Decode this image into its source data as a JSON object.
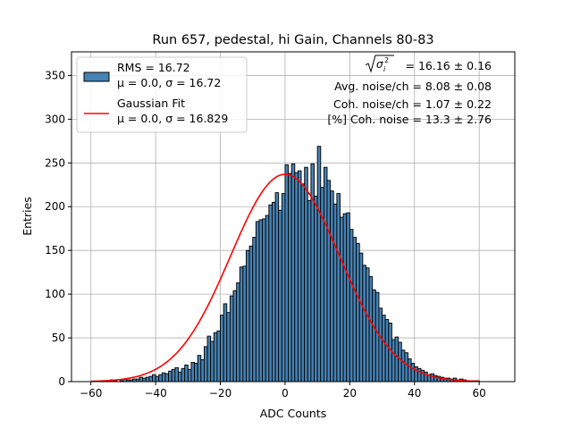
{
  "chart_data": {
    "type": "bar",
    "title": "Run 657, pedestal, hi Gain, Channels 80-83",
    "xlabel": "ADC Counts",
    "ylabel": "Entries",
    "xlim": [
      -66,
      71
    ],
    "ylim": [
      0,
      377
    ],
    "xticks": [
      -60,
      -40,
      -20,
      0,
      20,
      40,
      60
    ],
    "yticks": [
      0,
      50,
      100,
      150,
      200,
      250,
      300,
      350
    ],
    "grid": true,
    "legend_position": "top-left",
    "bin_width": 1,
    "x_start": -60,
    "histogram_counts": [
      0,
      0,
      0,
      0,
      1,
      1,
      2,
      1,
      0,
      1,
      3,
      2,
      2,
      3,
      3,
      5,
      4,
      5,
      6,
      8,
      6,
      8,
      10,
      9,
      12,
      14,
      16,
      11,
      15,
      19,
      14,
      22,
      21,
      30,
      25,
      40,
      52,
      46,
      56,
      58,
      76,
      89,
      79,
      98,
      104,
      113,
      131,
      132,
      150,
      155,
      165,
      183,
      185,
      186,
      190,
      202,
      205,
      216,
      196,
      215,
      248,
      238,
      249,
      239,
      241,
      226,
      245,
      207,
      249,
      212,
      269,
      222,
      245,
      230,
      218,
      203,
      215,
      188,
      192,
      193,
      174,
      165,
      158,
      147,
      133,
      130,
      120,
      105,
      102,
      84,
      76,
      71,
      67,
      48,
      51,
      45,
      36,
      33,
      26,
      21,
      17,
      15,
      13,
      11,
      8,
      9,
      7,
      6,
      5,
      4,
      4,
      3,
      4,
      2,
      3,
      2,
      1,
      1,
      1,
      1,
      0,
      0,
      0,
      0,
      0,
      0
    ],
    "series": [
      {
        "name": "RMS = 16.72",
        "name_line2": "μ = 0.0, σ = 16.72",
        "type": "histogram",
        "color": "#4682b4",
        "edge_color": "#000000"
      },
      {
        "name": "Gaussian Fit",
        "name_line2": "μ = 0.0, σ = 16.829",
        "type": "line",
        "color": "#ff0000",
        "mu": 0.0,
        "sigma": 16.829,
        "amplitude": 237,
        "x_range": [
          -60,
          60
        ]
      }
    ],
    "annotations": {
      "sigma_i_value": "= 16.16 ± 0.16",
      "avg_noise": "Avg. noise/ch = 8.08 ± 0.08",
      "coh_noise": "Coh. noise/ch = 1.07 ± 0.22",
      "pct_coh_noise": "[%] Coh. noise = 13.3 ± 2.76"
    }
  }
}
